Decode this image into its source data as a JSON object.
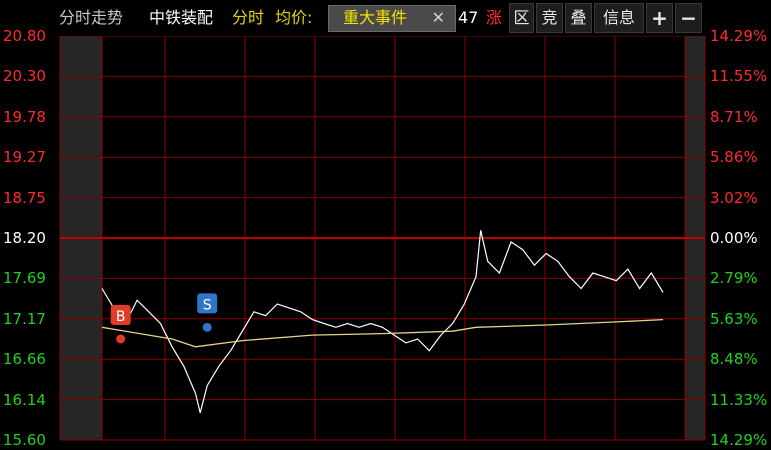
{
  "header": {
    "title": "分时走势",
    "stock_name": "中铁装配",
    "mode": "分时",
    "avg_label": "均价:",
    "popup": {
      "label": "重大事件",
      "close": "✕"
    },
    "value_fragment": "47",
    "change_label": "涨",
    "tabs": {
      "qu": "区",
      "jing": "竞",
      "die": "叠",
      "info": "信息",
      "plus": "+",
      "minus": "−"
    }
  },
  "colors": {
    "price_line": "#ffffff",
    "avg_line": "#e6d38a",
    "grid": "#8b0000",
    "prev_close_line": "#c00000",
    "up_text": "#ff2a2a",
    "down_text": "#1ed21e",
    "buy_marker": "#e23c28",
    "sell_marker": "#2f76c8",
    "event_dot": "#3a8bd6",
    "auction_band": "#262626"
  },
  "icons": {
    "buy": "B",
    "sell": "S",
    "close": "close-icon"
  },
  "y_axis_left": [
    "20.80",
    "20.30",
    "19.78",
    "19.27",
    "18.75",
    "18.20",
    "17.69",
    "17.17",
    "16.66",
    "16.14",
    "15.60"
  ],
  "y_axis_right": [
    "14.29%",
    "11.55%",
    "8.71%",
    "5.86%",
    "3.02%",
    "0.00%",
    "2.79%",
    "5.63%",
    "8.48%",
    "11.33%",
    "14.29%"
  ],
  "chart_data": {
    "type": "line",
    "title": "",
    "prev_close": 18.2,
    "ylim": [
      15.6,
      20.8
    ],
    "x_unit": "minute index (0-240)",
    "series": [
      {
        "name": "",
        "points": [
          [
            0,
            17.55
          ],
          [
            5,
            17.3
          ],
          [
            10,
            17.1
          ],
          [
            15,
            17.4
          ],
          [
            20,
            17.25
          ],
          [
            25,
            17.1
          ],
          [
            30,
            16.8
          ],
          [
            35,
            16.55
          ],
          [
            40,
            16.2
          ],
          [
            42,
            15.95
          ],
          [
            45,
            16.3
          ],
          [
            50,
            16.55
          ],
          [
            55,
            16.75
          ],
          [
            60,
            17.0
          ],
          [
            65,
            17.25
          ],
          [
            70,
            17.2
          ],
          [
            75,
            17.35
          ],
          [
            80,
            17.3
          ],
          [
            85,
            17.25
          ],
          [
            90,
            17.15
          ],
          [
            95,
            17.1
          ],
          [
            100,
            17.05
          ],
          [
            105,
            17.1
          ],
          [
            110,
            17.05
          ],
          [
            115,
            17.1
          ],
          [
            120,
            17.05
          ],
          [
            125,
            16.95
          ],
          [
            130,
            16.85
          ],
          [
            135,
            16.9
          ],
          [
            140,
            16.75
          ],
          [
            145,
            16.95
          ],
          [
            150,
            17.1
          ],
          [
            155,
            17.35
          ],
          [
            160,
            17.7
          ],
          [
            162,
            18.3
          ],
          [
            165,
            17.9
          ],
          [
            170,
            17.75
          ],
          [
            175,
            18.15
          ],
          [
            180,
            18.05
          ],
          [
            185,
            17.85
          ],
          [
            190,
            18.0
          ],
          [
            195,
            17.9
          ],
          [
            200,
            17.7
          ],
          [
            205,
            17.55
          ],
          [
            210,
            17.75
          ],
          [
            215,
            17.7
          ],
          [
            220,
            17.65
          ],
          [
            225,
            17.8
          ],
          [
            230,
            17.55
          ],
          [
            235,
            17.75
          ],
          [
            240,
            17.5
          ]
        ]
      },
      {
        "name": "",
        "points": [
          [
            0,
            17.05
          ],
          [
            30,
            16.9
          ],
          [
            40,
            16.8
          ],
          [
            60,
            16.88
          ],
          [
            90,
            16.95
          ],
          [
            120,
            16.97
          ],
          [
            150,
            17.0
          ],
          [
            160,
            17.05
          ],
          [
            190,
            17.08
          ],
          [
            220,
            17.12
          ],
          [
            240,
            17.15
          ]
        ]
      }
    ],
    "markers": [
      {
        "type": "buy",
        "label": "B",
        "x": 8,
        "y": 16.9
      },
      {
        "type": "sell",
        "label": "S",
        "x": 45,
        "y": 17.05
      }
    ],
    "grid": true
  }
}
